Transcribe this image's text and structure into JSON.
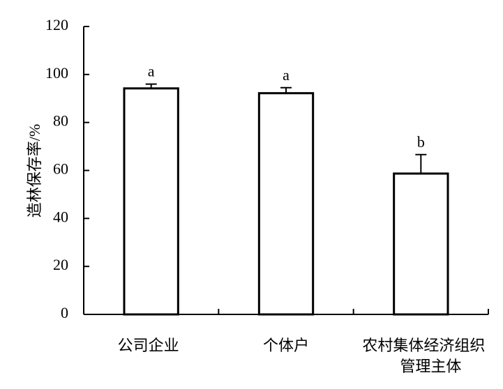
{
  "chart_data": {
    "type": "bar",
    "ylabel": "造林保存率/%",
    "categories": [
      "公司企业",
      "个体户",
      "农村集体经济组织\n管理主体"
    ],
    "values": [
      94.2,
      92.2,
      58.7
    ],
    "errors": [
      1.8,
      2.3,
      7.9
    ],
    "annotations": [
      "a",
      "a",
      "b"
    ],
    "color": "#ffffff",
    "ylim": [
      0,
      120
    ],
    "yticks": [
      0,
      20,
      40,
      60,
      80,
      100,
      120
    ],
    "grid": false
  }
}
